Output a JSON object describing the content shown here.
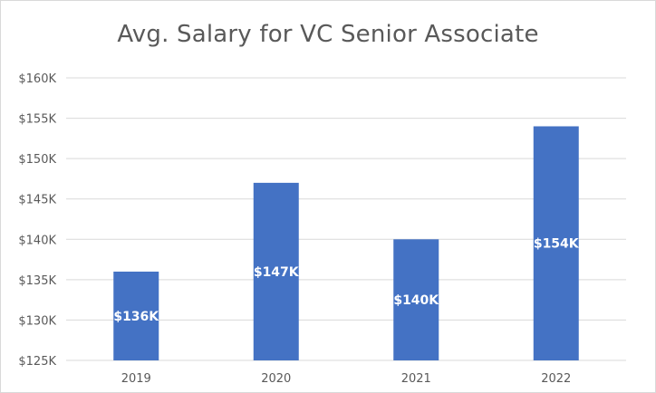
{
  "chart_data": {
    "type": "bar",
    "title": "Avg. Salary for VC Senior Associate",
    "xlabel": "",
    "ylabel": "",
    "categories": [
      "2019",
      "2020",
      "2021",
      "2022"
    ],
    "values": [
      136,
      147,
      140,
      154
    ],
    "data_labels": [
      "$136K",
      "$147K",
      "$140K",
      "$154K"
    ],
    "ylim": [
      125,
      160
    ],
    "yticks": [
      125,
      130,
      135,
      140,
      145,
      150,
      155,
      160
    ],
    "ytick_labels": [
      "$125K",
      "$130K",
      "$135K",
      "$140K",
      "$145K",
      "$150K",
      "$155K",
      "$160K"
    ],
    "grid": true,
    "legend": "none",
    "bar_color": "#4472c4",
    "grid_color": "#d9d9d9"
  }
}
